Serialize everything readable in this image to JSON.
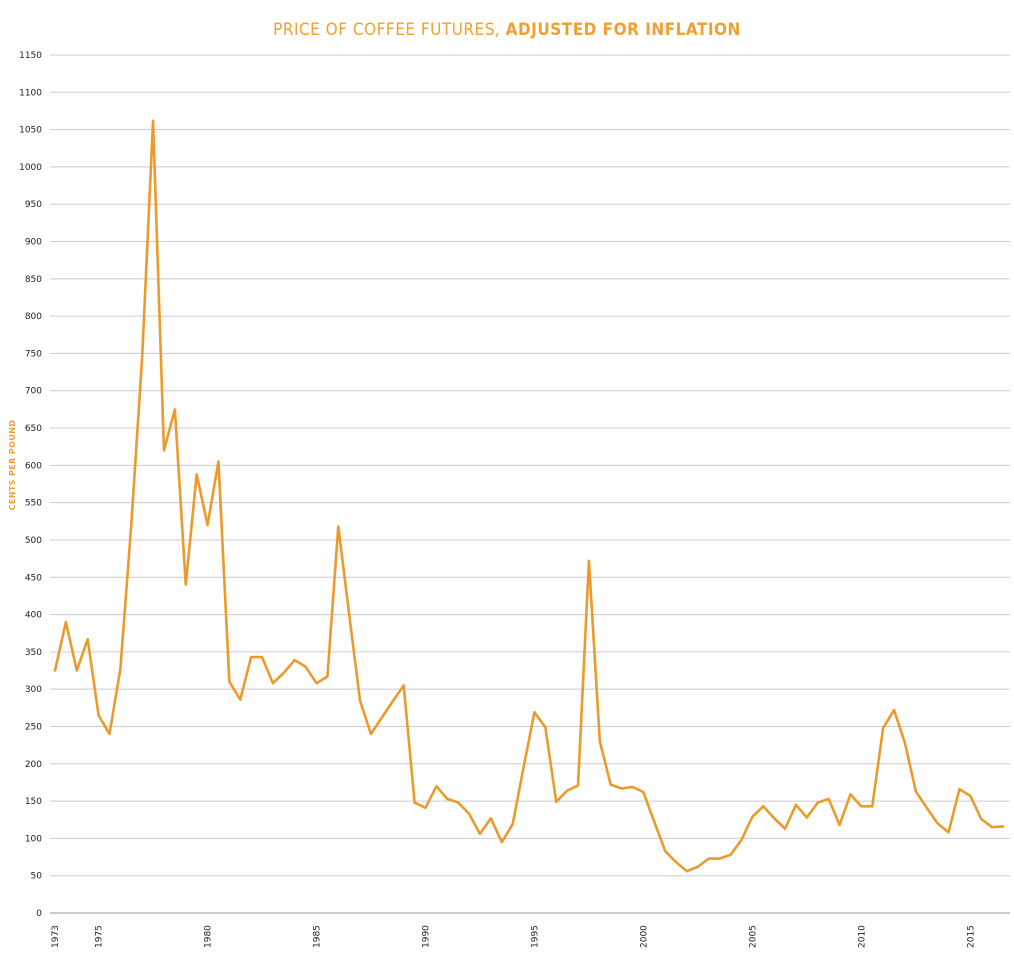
{
  "chart_data": {
    "type": "line",
    "title_regular": "PRICE OF COFFEE FUTURES, ",
    "title_bold": "ADJUSTED FOR INFLATION",
    "xlabel": "",
    "ylabel": "CENTS PER POUND",
    "ylim": [
      0,
      1150
    ],
    "xlim": [
      1973,
      2016.5
    ],
    "yticks": [
      0,
      50,
      100,
      150,
      200,
      250,
      300,
      350,
      400,
      450,
      500,
      550,
      600,
      650,
      700,
      750,
      800,
      850,
      900,
      950,
      1000,
      1050,
      1100,
      1150
    ],
    "xticks": [
      1973,
      1975,
      1980,
      1985,
      1990,
      1995,
      2000,
      2005,
      2010,
      2015
    ],
    "grid": true,
    "color": "#EB9A2C",
    "series": [
      {
        "x": [
          1973,
          1973.5,
          1974,
          1974.5,
          1975,
          1975.5,
          1976,
          1976.5,
          1977,
          1977.5,
          1978,
          1978.5,
          1979,
          1979.5,
          1980,
          1980.5,
          1981,
          1981.5,
          1982,
          1982.5,
          1983,
          1983.5,
          1984,
          1984.5,
          1985,
          1985.5,
          1986,
          1986.5,
          1987,
          1987.5,
          1988,
          1988.5,
          1989,
          1989.5,
          1990,
          1990.5,
          1991,
          1991.5,
          1992,
          1992.5,
          1993,
          1993.5,
          1994,
          1994.5,
          1995,
          1995.5,
          1996,
          1996.5,
          1997,
          1997.5,
          1998,
          1998.5,
          1999,
          1999.5,
          2000,
          2000.5,
          2001,
          2001.5,
          2002,
          2002.5,
          2003,
          2003.5,
          2004,
          2004.5,
          2005,
          2005.5,
          2006,
          2006.5,
          2007,
          2007.5,
          2008,
          2008.5,
          2009,
          2009.5,
          2010,
          2010.5,
          2011,
          2011.5,
          2012,
          2012.5,
          2013,
          2013.5,
          2014,
          2014.5,
          2015,
          2015.5,
          2016,
          2016.5
        ],
        "values": [
          325,
          390,
          325,
          367,
          265,
          240,
          327,
          520,
          745,
          1062,
          620,
          675,
          440,
          588,
          520,
          605,
          310,
          286,
          343,
          343,
          308,
          322,
          339,
          330,
          308,
          317,
          518,
          400,
          284,
          240,
          262,
          284,
          305,
          148,
          141,
          170,
          153,
          148,
          133,
          106,
          127,
          95,
          119,
          195,
          269,
          249,
          149,
          164,
          171,
          472,
          230,
          172,
          167,
          169,
          162,
          122,
          83,
          68,
          56,
          62,
          73,
          73,
          78,
          98,
          129,
          143,
          127,
          113,
          145,
          128,
          148,
          153,
          118,
          159,
          143,
          143,
          248,
          272,
          228,
          163,
          141,
          120,
          108,
          166,
          157,
          126,
          115,
          116
        ]
      }
    ]
  }
}
